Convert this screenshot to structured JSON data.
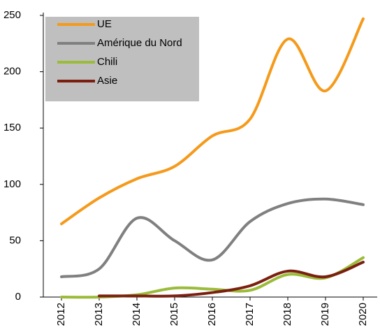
{
  "chart_data": {
    "type": "line",
    "x": [
      2012,
      2013,
      2014,
      2015,
      2016,
      2017,
      2018,
      2019,
      2020
    ],
    "series": [
      {
        "name": "UE",
        "color": "#f59a1b",
        "values": [
          65,
          88,
          105,
          116,
          143,
          158,
          229,
          183,
          247
        ]
      },
      {
        "name": "Amérique du Nord",
        "color": "#808080",
        "values": [
          18,
          25,
          70,
          50,
          33,
          67,
          83,
          87,
          82
        ]
      },
      {
        "name": "Chili",
        "color": "#9bbb3a",
        "values": [
          0,
          0,
          2,
          8,
          7,
          6,
          20,
          17,
          35
        ]
      },
      {
        "name": "Asie",
        "color": "#7b2010",
        "values": [
          null,
          1,
          1,
          1,
          4,
          10,
          23,
          18,
          31
        ]
      }
    ],
    "xlim": [
      2012,
      2020
    ],
    "ylim": [
      0,
      250
    ],
    "yticks": [
      0,
      50,
      100,
      150,
      200,
      250
    ],
    "legend": "top-left"
  }
}
